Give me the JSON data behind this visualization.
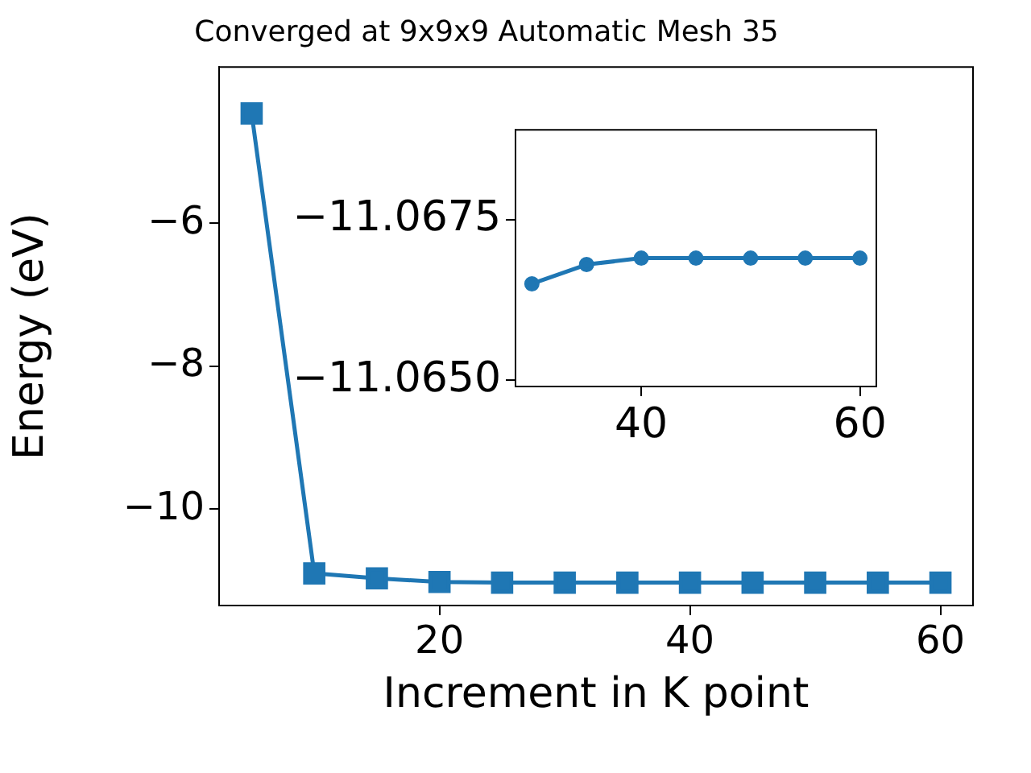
{
  "chart_data": [
    {
      "type": "line",
      "title": "Converged at 9x9x9 Automatic Mesh 35",
      "xlabel": "Increment in K point",
      "ylabel": "Energy (eV)",
      "x": [
        5,
        10,
        15,
        20,
        25,
        30,
        35,
        40,
        45,
        50,
        55,
        60
      ],
      "series": [
        {
          "color": "#1f77b4",
          "values": [
            -4.46,
            -10.9,
            -10.97,
            -11.02,
            -11.03,
            -11.03,
            -11.03,
            -11.03,
            -11.03,
            -11.03,
            -11.03,
            -11.03
          ]
        }
      ],
      "xlim": [
        2.4,
        62.6
      ],
      "ylim": [
        -11.35,
        -3.81
      ],
      "xticks": [
        {
          "value": 20,
          "label": "20"
        },
        {
          "value": 40,
          "label": "40"
        },
        {
          "value": 60,
          "label": "60"
        }
      ],
      "yticks": [
        {
          "value": -10,
          "label": "−10"
        },
        {
          "value": -8,
          "label": "−8"
        },
        {
          "value": -6,
          "label": "−6"
        }
      ],
      "marker": "square",
      "grid": false,
      "legend": false
    },
    {
      "type": "line",
      "x": [
        30,
        35,
        40,
        45,
        50,
        55,
        60
      ],
      "series": [
        {
          "color": "#1f77b4",
          "values": [
            -11.0665,
            -11.0668,
            -11.0669,
            -11.0669,
            -11.0669,
            -11.0669,
            -11.0669
          ]
        }
      ],
      "xlim": [
        28.5,
        61.5
      ],
      "ylim": [
        -11.0649,
        -11.0689
      ],
      "xticks": [
        {
          "value": 40,
          "label": "40"
        },
        {
          "value": 60,
          "label": "60"
        }
      ],
      "yticks": [
        {
          "value": -11.065,
          "label": "−11.0650"
        },
        {
          "value": -11.0675,
          "label": "−11.0675"
        }
      ],
      "marker": "circle",
      "grid": false,
      "legend": false
    }
  ]
}
